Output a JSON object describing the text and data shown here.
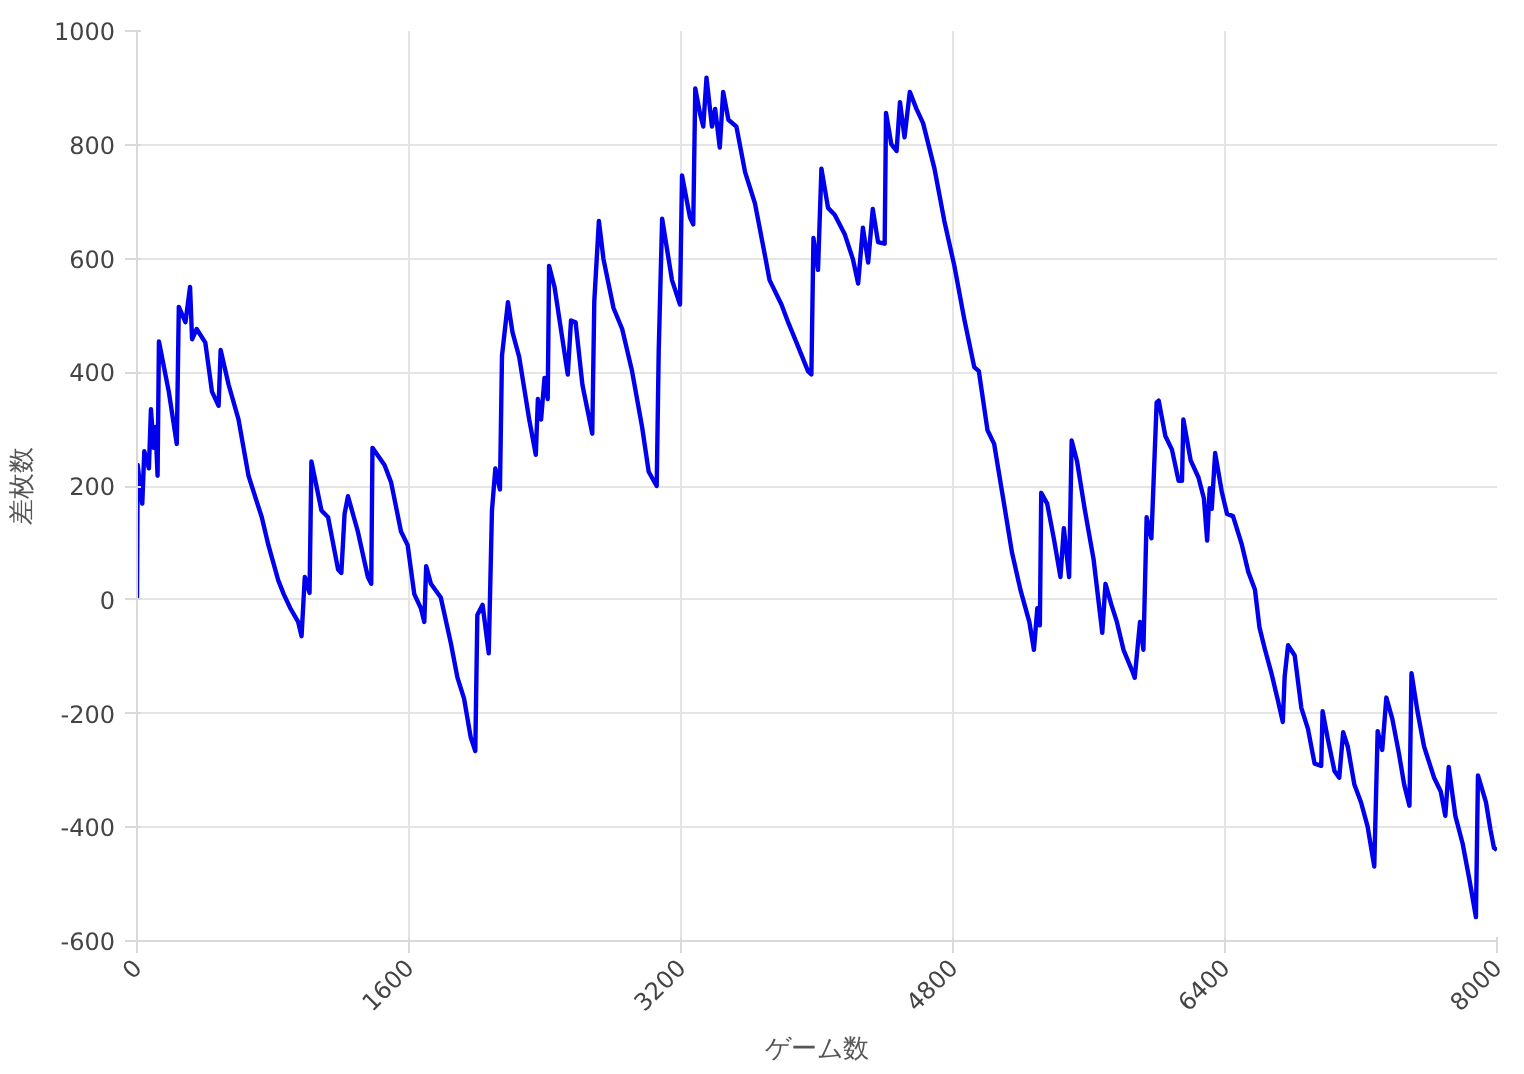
{
  "chart_data": {
    "type": "line",
    "xlabel": "ゲーム数",
    "ylabel": "差枚数",
    "xlim": [
      0,
      8000
    ],
    "ylim": [
      -600,
      1000
    ],
    "xticks": [
      0,
      1600,
      3200,
      4800,
      6400,
      8000
    ],
    "yticks": [
      -600,
      -400,
      -200,
      0,
      200,
      400,
      600,
      800,
      1000
    ],
    "grid": true,
    "marker": "none",
    "line_style": "solid",
    "series": [
      {
        "color": "#0000ee",
        "x": [
          0,
          4,
          31,
          43,
          70,
          82,
          98,
          109,
          121,
          129,
          187,
          234,
          246,
          285,
          312,
          324,
          351,
          402,
          441,
          480,
          492,
          539,
          597,
          656,
          734,
          773,
          831,
          863,
          902,
          948,
          968,
          987,
          1015,
          1026,
          1085,
          1124,
          1183,
          1202,
          1221,
          1241,
          1299,
          1358,
          1378,
          1385,
          1456,
          1495,
          1553,
          1592,
          1631,
          1670,
          1690,
          1701,
          1729,
          1787,
          1846,
          1885,
          1924,
          1963,
          1990,
          2002,
          2033,
          2069,
          2088,
          2108,
          2135,
          2147,
          2182,
          2209,
          2248,
          2307,
          2346,
          2358,
          2377,
          2397,
          2416,
          2424,
          2456,
          2534,
          2553,
          2580,
          2620,
          2678,
          2690,
          2717,
          2744,
          2803,
          2854,
          2912,
          2971,
          3010,
          3057,
          3069,
          3089,
          3147,
          3194,
          3206,
          3253,
          3272,
          3284,
          3311,
          3331,
          3350,
          3382,
          3401,
          3428,
          3448,
          3479,
          3526,
          3577,
          3635,
          3694,
          3721,
          3791,
          3830,
          3889,
          3947,
          3967,
          3979,
          4006,
          4026,
          4065,
          4104,
          4164,
          4211,
          4242,
          4270,
          4301,
          4328,
          4359,
          4398,
          4406,
          4437,
          4468,
          4488,
          4515,
          4546,
          4585,
          4624,
          4691,
          4749,
          4808,
          4866,
          4925,
          4952,
          5003,
          5042,
          5100,
          5147,
          5198,
          5249,
          5276,
          5296,
          5311,
          5319,
          5354,
          5393,
          5432,
          5452,
          5483,
          5498,
          5530,
          5576,
          5627,
          5678,
          5697,
          5732,
          5764,
          5803,
          5854,
          5869,
          5900,
          5920,
          5939,
          5967,
          5998,
          6010,
          6049,
          6088,
          6127,
          6147,
          6155,
          6198,
          6244,
          6276,
          6295,
          6310,
          6322,
          6342,
          6381,
          6412,
          6447,
          6498,
          6537,
          6576,
          6603,
          6634,
          6673,
          6712,
          6740,
          6751,
          6771,
          6810,
          6849,
          6888,
          6927,
          6966,
          6974,
          7005,
          7044,
          7072,
          7095,
          7122,
          7161,
          7200,
          7239,
          7278,
          7298,
          7325,
          7349,
          7384,
          7423,
          7454,
          7485,
          7497,
          7532,
          7571,
          7630,
          7669,
          7696,
          7716,
          7755,
          7798,
          7837,
          7876,
          7888,
          7935,
          7962,
          7982,
          8000
        ],
        "values": [
          0,
          237,
          169,
          261,
          231,
          335,
          267,
          304,
          218,
          454,
          366,
          274,
          515,
          488,
          550,
          458,
          476,
          452,
          366,
          341,
          439,
          378,
          317,
          218,
          145,
          96,
          34,
          10,
          -15,
          -39,
          -64,
          40,
          12,
          243,
          157,
          145,
          53,
          47,
          151,
          182,
          120,
          40,
          28,
          267,
          237,
          206,
          120,
          96,
          10,
          -15,
          -39,
          59,
          28,
          4,
          -76,
          -137,
          -174,
          -242,
          -266,
          -27,
          -9,
          -94,
          157,
          231,
          194,
          429,
          523,
          470,
          427,
          317,
          255,
          353,
          317,
          390,
          353,
          587,
          550,
          396,
          491,
          488,
          378,
          292,
          525,
          666,
          599,
          513,
          476,
          402,
          304,
          225,
          200,
          439,
          670,
          562,
          519,
          746,
          672,
          660,
          899,
          856,
          832,
          918,
          832,
          863,
          795,
          893,
          844,
          832,
          752,
          697,
          605,
          562,
          519,
          488,
          445,
          402,
          396,
          636,
          580,
          758,
          689,
          677,
          642,
          599,
          556,
          654,
          593,
          687,
          629,
          626,
          856,
          801,
          789,
          875,
          813,
          893,
          863,
          838,
          758,
          666,
          587,
          494,
          409,
          402,
          298,
          274,
          169,
          83,
          16,
          -39,
          -88,
          -15,
          -45,
          188,
          169,
          108,
          40,
          126,
          40,
          280,
          243,
          157,
          71,
          -58,
          28,
          -9,
          -39,
          -88,
          -125,
          -137,
          -39,
          -88,
          145,
          108,
          347,
          350,
          288,
          264,
          209,
          209,
          317,
          245,
          215,
          178,
          104,
          196,
          160,
          258,
          190,
          151,
          147,
          98,
          49,
          18,
          -49,
          -86,
          -129,
          -178,
          -215,
          -135,
          -80,
          -98,
          -190,
          -227,
          -288,
          -292,
          -196,
          -245,
          -301,
          -313,
          -233,
          -258,
          -325,
          -356,
          -399,
          -469,
          -231,
          -264,
          -172,
          -209,
          -270,
          -325,
          -362,
          -129,
          -196,
          -258,
          -313,
          -337,
          -380,
          -294,
          -380,
          -429,
          -491,
          -558,
          -309,
          -356,
          -405,
          -436,
          -440
        ]
      }
    ]
  }
}
